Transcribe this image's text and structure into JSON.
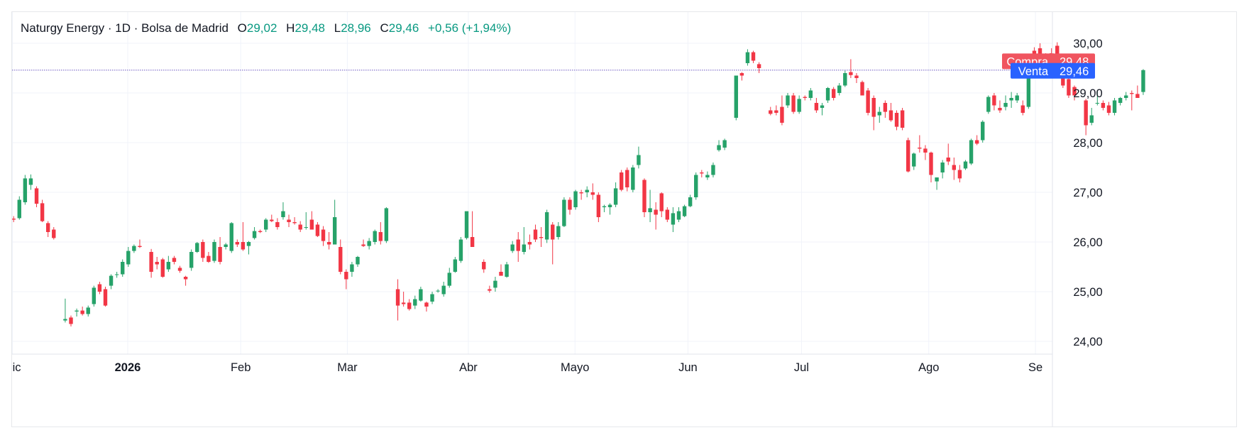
{
  "legend": {
    "symbol": "Naturgy Energy",
    "interval": "1D",
    "exchange": "Bolsa de Madrid",
    "open_label": "O",
    "open": "29,02",
    "high_label": "H",
    "high": "29,48",
    "low_label": "L",
    "low": "28,96",
    "close_label": "C",
    "close": "29,46",
    "change": "+0,56 (+1,94%)"
  },
  "price_tags": {
    "buy_label": "Compra",
    "buy_value": "29,48",
    "sell_label": "Venta",
    "sell_value": "29,46"
  },
  "colors": {
    "up": "#26a269",
    "down": "#f23645",
    "buy_tag": "#f0545f",
    "sell_tag": "#2962ff",
    "legend_values": "#089981"
  },
  "chart_data": {
    "type": "candlestick",
    "ylim": [
      23.7,
      30.45
    ],
    "y_ticks": [
      "24,00",
      "25,00",
      "26,00",
      "27,00",
      "28,00",
      "29,00",
      "30,00"
    ],
    "y_tick_values": [
      24,
      25,
      26,
      27,
      28,
      29,
      30
    ],
    "x_ticks": [
      {
        "label": "Dic",
        "slot": -0.2,
        "bold": false
      },
      {
        "label": "2026",
        "slot": 19.9,
        "bold": true
      },
      {
        "label": "Feb",
        "slot": 39.6,
        "bold": false
      },
      {
        "label": "Mar",
        "slot": 58.2,
        "bold": false
      },
      {
        "label": "Abr",
        "slot": 79.3,
        "bold": false
      },
      {
        "label": "Mayo",
        "slot": 97.9,
        "bold": false
      },
      {
        "label": "Jun",
        "slot": 117.6,
        "bold": false
      },
      {
        "label": "Jul",
        "slot": 137.4,
        "bold": false
      },
      {
        "label": "Ago",
        "slot": 159.6,
        "bold": false
      },
      {
        "label": "Se",
        "slot": 178.2,
        "bold": false
      }
    ],
    "candles": [
      [
        26.47,
        26.52,
        26.4,
        26.45
      ],
      [
        26.48,
        26.92,
        26.45,
        26.85
      ],
      [
        26.8,
        27.35,
        26.75,
        27.28
      ],
      [
        27.15,
        27.36,
        27.05,
        27.28
      ],
      [
        27.08,
        27.12,
        26.7,
        26.77
      ],
      [
        26.78,
        26.85,
        26.4,
        26.42
      ],
      [
        26.38,
        26.42,
        26.1,
        26.2
      ],
      [
        26.25,
        26.3,
        26.05,
        26.08
      ],
      [
        null,
        null,
        null,
        null
      ],
      [
        24.42,
        24.86,
        24.38,
        24.45
      ],
      [
        24.48,
        24.52,
        24.3,
        24.35
      ],
      [
        24.6,
        24.66,
        24.5,
        24.62
      ],
      [
        24.62,
        24.7,
        24.52,
        24.55
      ],
      [
        24.55,
        24.72,
        24.5,
        24.68
      ],
      [
        24.75,
        25.12,
        24.7,
        25.08
      ],
      [
        25.15,
        25.2,
        24.95,
        25.0
      ],
      [
        25.05,
        25.1,
        24.7,
        24.72
      ],
      [
        25.12,
        25.35,
        25.05,
        25.32
      ],
      [
        25.35,
        25.4,
        25.28,
        25.35
      ],
      [
        25.35,
        25.65,
        25.3,
        25.6
      ],
      [
        25.55,
        25.9,
        25.5,
        25.82
      ],
      [
        25.82,
        25.95,
        25.78,
        25.92
      ],
      [
        25.92,
        26.05,
        25.88,
        25.9
      ],
      [
        null,
        null,
        null,
        null
      ],
      [
        25.8,
        25.86,
        25.28,
        25.4
      ],
      [
        25.6,
        25.7,
        25.45,
        25.55
      ],
      [
        25.65,
        25.68,
        25.28,
        25.3
      ],
      [
        25.45,
        25.72,
        25.4,
        25.6
      ],
      [
        25.68,
        25.72,
        25.55,
        25.6
      ],
      [
        25.48,
        25.52,
        25.38,
        25.42
      ],
      [
        25.3,
        25.32,
        25.12,
        25.25
      ],
      [
        25.48,
        25.85,
        25.42,
        25.8
      ],
      [
        25.8,
        26.0,
        25.78,
        25.98
      ],
      [
        26.0,
        26.05,
        25.6,
        25.68
      ],
      [
        25.72,
        25.8,
        25.58,
        25.6
      ],
      [
        25.62,
        26.05,
        25.58,
        26.0
      ],
      [
        25.9,
        26.1,
        25.55,
        25.6
      ],
      [
        25.9,
        25.98,
        25.85,
        25.95
      ],
      [
        25.82,
        26.4,
        25.78,
        26.38
      ],
      [
        26.0,
        26.05,
        25.9,
        25.95
      ],
      [
        26.0,
        26.4,
        25.82,
        25.85
      ],
      [
        25.92,
        26.02,
        25.75,
        26.0
      ],
      [
        26.08,
        26.3,
        26.05,
        26.22
      ],
      [
        26.22,
        26.25,
        26.18,
        26.2
      ],
      [
        26.25,
        26.48,
        26.2,
        26.45
      ],
      [
        26.45,
        26.55,
        26.4,
        26.42
      ],
      [
        26.4,
        26.48,
        26.25,
        26.3
      ],
      [
        26.5,
        26.8,
        26.45,
        26.62
      ],
      [
        26.45,
        26.55,
        26.3,
        26.4
      ],
      [
        26.4,
        26.5,
        26.35,
        26.38
      ],
      [
        26.35,
        26.42,
        26.2,
        26.25
      ],
      [
        26.3,
        26.6,
        26.25,
        26.3
      ],
      [
        26.45,
        26.62,
        26.28,
        26.25
      ],
      [
        26.35,
        26.4,
        26.1,
        26.12
      ],
      [
        26.25,
        26.32,
        25.92,
        26.02
      ],
      [
        26.0,
        26.2,
        25.85,
        25.95
      ],
      [
        25.95,
        26.85,
        25.95,
        26.5
      ],
      [
        25.9,
        26.05,
        25.35,
        25.4
      ],
      [
        25.4,
        25.45,
        25.05,
        25.25
      ],
      [
        25.4,
        25.6,
        25.3,
        25.55
      ],
      [
        25.55,
        25.72,
        25.5,
        25.7
      ],
      [
        25.95,
        26.05,
        25.9,
        25.92
      ],
      [
        25.92,
        26.08,
        25.85,
        26.02
      ],
      [
        26.0,
        26.25,
        25.95,
        26.22
      ],
      [
        26.2,
        26.4,
        25.95,
        26.02
      ],
      [
        26.02,
        26.7,
        25.98,
        26.68
      ],
      [
        null,
        null,
        null,
        null
      ],
      [
        25.05,
        25.25,
        24.42,
        24.72
      ],
      [
        24.78,
        25.0,
        24.7,
        24.75
      ],
      [
        24.78,
        24.85,
        24.62,
        24.65
      ],
      [
        24.72,
        24.92,
        24.65,
        24.85
      ],
      [
        24.82,
        25.1,
        24.8,
        25.05
      ],
      [
        24.78,
        24.8,
        24.6,
        24.7
      ],
      [
        24.8,
        25.0,
        24.75,
        24.95
      ],
      [
        25.02,
        25.05,
        24.98,
        25.02
      ],
      [
        24.95,
        25.2,
        24.9,
        25.12
      ],
      [
        25.12,
        25.48,
        25.08,
        25.38
      ],
      [
        25.4,
        25.7,
        25.38,
        25.65
      ],
      [
        25.62,
        26.1,
        25.58,
        26.05
      ],
      [
        26.08,
        26.6,
        26.05,
        26.62
      ],
      [
        26.1,
        26.62,
        26.0,
        25.9
      ],
      [
        null,
        null,
        null,
        null
      ],
      [
        25.6,
        25.65,
        25.38,
        25.45
      ],
      [
        25.05,
        25.12,
        24.98,
        25.02
      ],
      [
        25.08,
        25.3,
        25.0,
        25.22
      ],
      [
        25.4,
        25.55,
        25.35,
        25.32
      ],
      [
        25.3,
        25.6,
        25.28,
        25.55
      ],
      [
        25.82,
        26.02,
        25.78,
        25.95
      ],
      [
        26.05,
        26.2,
        25.6,
        25.82
      ],
      [
        25.8,
        26.3,
        25.75,
        25.95
      ],
      [
        26.0,
        26.15,
        25.85,
        25.95
      ],
      [
        26.25,
        26.35,
        26.0,
        26.05
      ],
      [
        26.1,
        26.3,
        25.9,
        26.08
      ],
      [
        26.05,
        26.65,
        25.98,
        26.6
      ],
      [
        26.35,
        26.4,
        25.55,
        26.05
      ],
      [
        26.1,
        26.4,
        26.05,
        26.32
      ],
      [
        26.32,
        26.9,
        26.3,
        26.85
      ],
      [
        26.85,
        26.9,
        26.55,
        26.65
      ],
      [
        26.7,
        27.05,
        26.65,
        27.02
      ],
      [
        27.0,
        27.05,
        26.85,
        26.98
      ],
      [
        27.0,
        27.12,
        26.9,
        27.05
      ],
      [
        27.0,
        27.18,
        26.85,
        26.95
      ],
      [
        26.95,
        27.0,
        26.4,
        26.5
      ],
      [
        26.7,
        26.75,
        26.6,
        26.72
      ],
      [
        26.7,
        26.78,
        26.55,
        26.75
      ],
      [
        26.75,
        27.2,
        26.7,
        27.08
      ],
      [
        27.4,
        27.45,
        27.02,
        27.05
      ],
      [
        27.45,
        27.5,
        27.02,
        27.1
      ],
      [
        27.05,
        27.55,
        27.0,
        27.5
      ],
      [
        27.55,
        27.92,
        27.48,
        27.75
      ],
      [
        27.25,
        27.28,
        26.5,
        26.6
      ],
      [
        26.6,
        27.05,
        26.4,
        26.68
      ],
      [
        26.65,
        26.8,
        26.25,
        26.55
      ],
      [
        26.98,
        27.0,
        26.5,
        26.62
      ],
      [
        26.65,
        26.7,
        26.4,
        26.45
      ],
      [
        26.35,
        26.7,
        26.2,
        26.58
      ],
      [
        26.45,
        26.7,
        26.4,
        26.62
      ],
      [
        26.52,
        26.75,
        26.5,
        26.72
      ],
      [
        26.72,
        26.95,
        26.7,
        26.9
      ],
      [
        26.9,
        27.4,
        26.85,
        27.35
      ],
      [
        27.4,
        27.45,
        27.3,
        27.38
      ],
      [
        27.3,
        27.42,
        27.25,
        27.35
      ],
      [
        27.35,
        27.6,
        27.3,
        27.55
      ],
      [
        27.85,
        28.05,
        27.82,
        27.95
      ],
      [
        27.9,
        28.08,
        27.85,
        28.05
      ],
      [
        null,
        null,
        null,
        null
      ],
      [
        28.5,
        28.55,
        28.45,
        29.35
      ],
      [
        29.4,
        29.42,
        29.25,
        29.35
      ],
      [
        29.6,
        29.88,
        29.55,
        29.82
      ],
      [
        29.82,
        29.85,
        29.6,
        29.65
      ],
      [
        29.58,
        29.62,
        29.4,
        29.5
      ],
      [
        null,
        null,
        null,
        null
      ],
      [
        28.65,
        28.72,
        28.55,
        28.58
      ],
      [
        28.65,
        28.75,
        28.55,
        28.6
      ],
      [
        28.72,
        28.95,
        28.35,
        28.4
      ],
      [
        28.75,
        29.0,
        28.7,
        28.95
      ],
      [
        28.95,
        29.0,
        28.58,
        28.62
      ],
      [
        28.62,
        28.95,
        28.58,
        28.88
      ],
      [
        28.92,
        28.95,
        28.85,
        28.9
      ],
      [
        28.9,
        29.1,
        28.85,
        29.05
      ],
      [
        28.8,
        28.9,
        28.6,
        28.65
      ],
      [
        28.7,
        28.8,
        28.55,
        28.75
      ],
      [
        28.85,
        29.12,
        28.8,
        29.1
      ],
      [
        29.08,
        29.12,
        28.85,
        28.9
      ],
      [
        29.0,
        29.2,
        28.95,
        29.15
      ],
      [
        29.15,
        29.45,
        29.12,
        29.4
      ],
      [
        29.42,
        29.68,
        29.3,
        29.36
      ],
      [
        29.35,
        29.4,
        29.2,
        29.3
      ],
      [
        29.22,
        29.25,
        28.95,
        28.95
      ],
      [
        29.05,
        29.1,
        28.55,
        28.6
      ],
      [
        28.9,
        28.95,
        28.25,
        28.52
      ],
      [
        28.55,
        28.72,
        28.4,
        28.62
      ],
      [
        28.8,
        28.85,
        28.5,
        28.62
      ],
      [
        28.65,
        28.8,
        28.42,
        28.45
      ],
      [
        28.6,
        28.65,
        28.25,
        28.32
      ],
      [
        28.65,
        28.7,
        28.25,
        28.3
      ],
      [
        28.05,
        28.1,
        27.4,
        27.42
      ],
      [
        27.52,
        27.8,
        27.45,
        27.78
      ],
      [
        27.9,
        28.15,
        27.8,
        27.88
      ],
      [
        27.88,
        27.95,
        27.65,
        27.8
      ],
      [
        27.8,
        27.82,
        27.2,
        27.35
      ],
      [
        27.22,
        27.25,
        27.05,
        27.3
      ],
      [
        27.4,
        27.65,
        27.28,
        27.6
      ],
      [
        27.7,
        27.98,
        27.55,
        27.62
      ],
      [
        27.55,
        27.7,
        27.25,
        27.45
      ],
      [
        27.45,
        27.55,
        27.2,
        27.28
      ],
      [
        27.48,
        27.65,
        27.45,
        27.62
      ],
      [
        27.58,
        28.08,
        27.55,
        28.05
      ],
      [
        28.05,
        28.15,
        27.95,
        27.98
      ],
      [
        28.05,
        28.45,
        28.0,
        28.42
      ],
      [
        28.62,
        28.95,
        28.58,
        28.92
      ],
      [
        28.95,
        29.0,
        28.65,
        28.75
      ],
      [
        28.7,
        28.85,
        28.6,
        28.65
      ],
      [
        28.72,
        28.95,
        28.65,
        28.8
      ],
      [
        28.85,
        29.02,
        28.7,
        28.9
      ],
      [
        28.85,
        29.0,
        28.8,
        28.95
      ],
      [
        28.75,
        28.85,
        28.55,
        28.6
      ],
      [
        28.72,
        29.5,
        28.68,
        29.45
      ],
      [
        29.85,
        29.92,
        29.65,
        29.72
      ],
      [
        29.9,
        30.0,
        29.5,
        29.75
      ],
      [
        29.7,
        29.8,
        29.55,
        29.62
      ],
      [
        29.8,
        29.9,
        29.38,
        29.4
      ],
      [
        29.95,
        30.02,
        29.3,
        29.48
      ],
      [
        29.45,
        29.5,
        29.1,
        29.15
      ],
      [
        29.28,
        29.3,
        28.9,
        28.95
      ],
      [
        29.12,
        29.15,
        28.85,
        28.95
      ],
      [
        null,
        null,
        null,
        null
      ],
      [
        28.85,
        28.88,
        28.15,
        28.35
      ],
      [
        28.4,
        28.7,
        28.35,
        28.55
      ],
      [
        28.8,
        29.05,
        28.75,
        28.8
      ],
      [
        28.8,
        28.85,
        28.65,
        28.7
      ],
      [
        28.75,
        28.82,
        28.55,
        28.6
      ],
      [
        28.6,
        28.9,
        28.55,
        28.85
      ],
      [
        28.8,
        28.92,
        28.75,
        28.9
      ],
      [
        28.9,
        29.02,
        28.85,
        28.95
      ],
      [
        29.0,
        29.05,
        28.65,
        28.98
      ],
      [
        28.98,
        29.15,
        28.9,
        28.9
      ],
      [
        29.02,
        29.48,
        28.96,
        29.46
      ]
    ]
  }
}
